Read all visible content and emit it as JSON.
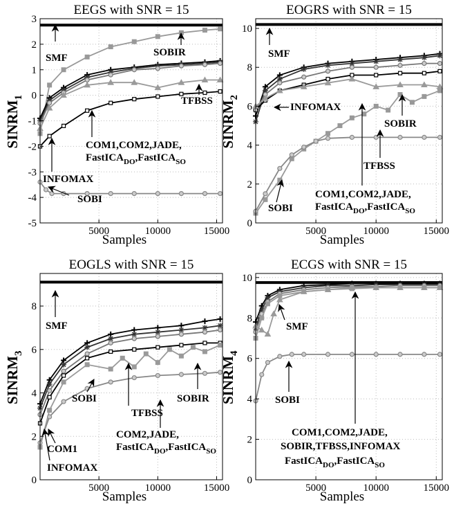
{
  "chart_data": [
    {
      "id": "eegs",
      "type": "line",
      "title": "EEGS  with SNR = 15",
      "ylabel": "SINRM",
      "ylabel_sub": "1",
      "xlabel": "Samples",
      "xlim": [
        0,
        15500
      ],
      "ylim": [
        -5,
        3
      ],
      "xticks": [
        5000,
        10000,
        15000
      ],
      "yticks": [
        -5,
        -4,
        -3,
        -2,
        -1,
        0,
        1,
        2,
        3
      ],
      "grid": true,
      "series": [
        {
          "name": "SMF",
          "color": "#000000",
          "marker": "hline",
          "x": [
            0,
            15500
          ],
          "y": [
            2.75,
            2.75
          ]
        },
        {
          "name": "SOBIR",
          "color": "#999999",
          "marker": "square",
          "x": [
            0,
            800,
            2000,
            4000,
            6000,
            8000,
            10000,
            12000,
            14000,
            15300
          ],
          "y": [
            -1.5,
            0.4,
            1.0,
            1.5,
            1.9,
            2.1,
            2.3,
            2.45,
            2.55,
            2.6
          ]
        },
        {
          "color": "#000000",
          "marker": "plus",
          "x": [
            0,
            800,
            2000,
            4000,
            6000,
            8000,
            10000,
            12000,
            14000,
            15300
          ],
          "y": [
            -0.9,
            -0.1,
            0.3,
            0.8,
            1.0,
            1.1,
            1.2,
            1.25,
            1.3,
            1.35
          ]
        },
        {
          "color": "#333333",
          "marker": "star",
          "x": [
            0,
            800,
            2000,
            4000,
            6000,
            8000,
            10000,
            12000,
            14000,
            15300
          ],
          "y": [
            -1.0,
            -0.2,
            0.2,
            0.7,
            0.9,
            1.05,
            1.15,
            1.2,
            1.25,
            1.3
          ]
        },
        {
          "color": "#777777",
          "marker": "circle",
          "x": [
            0,
            800,
            2000,
            4000,
            6000,
            8000,
            10000,
            12000,
            14000,
            15300
          ],
          "y": [
            -1.1,
            -0.3,
            0.1,
            0.6,
            0.8,
            1.0,
            1.05,
            1.15,
            1.2,
            1.25
          ]
        },
        {
          "name": "TFBSS",
          "color": "#9a9a9a",
          "marker": "triangle",
          "x": [
            0,
            800,
            2000,
            4000,
            6000,
            8000,
            10000,
            12000,
            14000,
            15300
          ],
          "y": [
            -1.3,
            -0.5,
            0.0,
            0.4,
            0.5,
            0.5,
            0.3,
            0.5,
            0.6,
            0.6
          ]
        },
        {
          "name": "INFOMAX",
          "color": "#000000",
          "marker": "opensquare",
          "x": [
            0,
            800,
            2000,
            4000,
            6000,
            8000,
            10000,
            12000,
            14000,
            15300
          ],
          "y": [
            -2.0,
            -1.6,
            -1.2,
            -0.6,
            -0.3,
            -0.15,
            -0.05,
            0.05,
            0.1,
            0.15
          ]
        },
        {
          "name": "SOBI",
          "color": "#888888",
          "marker": "circle",
          "x": [
            0,
            500,
            1000,
            2000,
            4000,
            6000,
            8000,
            10000,
            12000,
            14000,
            15300
          ],
          "y": [
            -3.4,
            -3.7,
            -3.85,
            -3.85,
            -3.85,
            -3.85,
            -3.85,
            -3.85,
            -3.85,
            -3.85,
            -3.85
          ]
        }
      ],
      "annotations": [
        {
          "text": "SMF"
        },
        {
          "text": "SOBIR"
        },
        {
          "text": "TFBSS"
        },
        {
          "text": "COM1,COM2,JADE,"
        },
        {
          "text": "FastICA",
          "sub": "DO",
          "after": ",FastICA",
          "sub2": "SO"
        },
        {
          "text": "INFOMAX"
        },
        {
          "text": "SOBI"
        }
      ]
    },
    {
      "id": "eogrs",
      "type": "line",
      "title": "EOGRS  with SNR = 15",
      "ylabel": "SINRM",
      "ylabel_sub": "2",
      "xlabel": "Samples",
      "xlim": [
        0,
        15500
      ],
      "ylim": [
        0,
        10.5
      ],
      "xticks": [
        5000,
        10000,
        15000
      ],
      "yticks": [
        0,
        2,
        4,
        6,
        8,
        10
      ],
      "grid": true,
      "series": [
        {
          "name": "SMF",
          "color": "#000000",
          "marker": "hline",
          "x": [
            0,
            15500
          ],
          "y": [
            10.2,
            10.2
          ]
        },
        {
          "color": "#000000",
          "marker": "plus",
          "x": [
            0,
            800,
            2000,
            4000,
            6000,
            8000,
            10000,
            12000,
            14000,
            15300
          ],
          "y": [
            5.5,
            7.0,
            7.6,
            8.0,
            8.2,
            8.3,
            8.4,
            8.5,
            8.6,
            8.7
          ]
        },
        {
          "color": "#333333",
          "marker": "star",
          "x": [
            0,
            800,
            2000,
            4000,
            6000,
            8000,
            10000,
            12000,
            14000,
            15300
          ],
          "y": [
            5.2,
            6.8,
            7.4,
            7.9,
            8.1,
            8.2,
            8.3,
            8.4,
            8.5,
            8.6
          ]
        },
        {
          "color": "#777777",
          "marker": "circle",
          "x": [
            0,
            800,
            2000,
            4000,
            6000,
            8000,
            10000,
            12000,
            14000,
            15300
          ],
          "y": [
            5.8,
            6.6,
            7.2,
            7.5,
            7.8,
            8.0,
            8.0,
            8.1,
            8.2,
            8.2
          ]
        },
        {
          "name": "INFOMAX",
          "color": "#000000",
          "marker": "opensquare",
          "x": [
            0,
            800,
            2000,
            4000,
            6000,
            8000,
            10000,
            12000,
            14000,
            15300
          ],
          "y": [
            5.8,
            6.3,
            6.8,
            7.1,
            7.4,
            7.6,
            7.6,
            7.7,
            7.7,
            7.8
          ]
        },
        {
          "name": "TFBSS",
          "color": "#9a9a9a",
          "marker": "triangle",
          "x": [
            0,
            800,
            2000,
            4000,
            6000,
            8000,
            10000,
            12000,
            14000,
            15300
          ],
          "y": [
            6.0,
            6.4,
            6.8,
            7.0,
            7.2,
            7.4,
            7.0,
            7.1,
            7.1,
            7.0
          ]
        },
        {
          "name": "SOBIR",
          "color": "#999999",
          "marker": "square",
          "x": [
            0,
            800,
            2000,
            3000,
            4000,
            5000,
            6000,
            7000,
            8000,
            9000,
            10000,
            11000,
            12000,
            13000,
            14000,
            15300
          ],
          "y": [
            0.5,
            1.2,
            2.2,
            3.3,
            3.8,
            4.2,
            4.6,
            5.0,
            5.4,
            5.6,
            6.0,
            5.8,
            6.6,
            6.2,
            6.5,
            6.8
          ]
        },
        {
          "name": "SOBI",
          "color": "#888888",
          "marker": "circle",
          "x": [
            0,
            800,
            2000,
            3000,
            4000,
            5000,
            6000,
            8000,
            10000,
            12000,
            14000,
            15300
          ],
          "y": [
            0.6,
            1.5,
            2.8,
            3.5,
            3.9,
            4.2,
            4.35,
            4.4,
            4.4,
            4.4,
            4.4,
            4.4
          ]
        }
      ],
      "annotations": [
        {
          "text": "SMF"
        },
        {
          "text": "INFOMAX"
        },
        {
          "text": "SOBIR"
        },
        {
          "text": "TFBSS"
        },
        {
          "text": "COM1,COM2,JADE,"
        },
        {
          "text": "FastICA",
          "sub": "DO",
          "after": ",FastICA",
          "sub2": "SO"
        },
        {
          "text": "SOBI"
        }
      ]
    },
    {
      "id": "eogls",
      "type": "line",
      "title": "EOGLS with SNR = 15",
      "ylabel": "SINRM",
      "ylabel_sub": "3",
      "xlabel": "Samples",
      "xlim": [
        0,
        15500
      ],
      "ylim": [
        0,
        9.5
      ],
      "xticks": [
        5000,
        10000,
        15000
      ],
      "yticks": [
        0,
        2,
        4,
        6,
        8
      ],
      "grid": true,
      "series": [
        {
          "name": "SMF",
          "color": "#000000",
          "marker": "hline",
          "x": [
            0,
            15500
          ],
          "y": [
            9.1,
            9.1
          ]
        },
        {
          "color": "#000000",
          "marker": "plus",
          "x": [
            0,
            800,
            2000,
            4000,
            6000,
            8000,
            10000,
            12000,
            14000,
            15300
          ],
          "y": [
            3.5,
            4.6,
            5.5,
            6.3,
            6.7,
            6.9,
            7.0,
            7.1,
            7.3,
            7.4
          ]
        },
        {
          "color": "#333333",
          "marker": "star",
          "x": [
            0,
            800,
            2000,
            4000,
            6000,
            8000,
            10000,
            12000,
            14000,
            15300
          ],
          "y": [
            3.3,
            4.4,
            5.3,
            6.1,
            6.5,
            6.7,
            6.8,
            6.9,
            7.0,
            7.1
          ]
        },
        {
          "name": "COM1",
          "color": "#777777",
          "marker": "circle",
          "x": [
            0,
            800,
            2000,
            4000,
            6000,
            8000,
            10000,
            12000,
            14000,
            15300
          ],
          "y": [
            3.0,
            4.1,
            5.0,
            5.8,
            6.3,
            6.5,
            6.6,
            6.7,
            6.8,
            6.9
          ]
        },
        {
          "name": "INFOMAX",
          "color": "#000000",
          "marker": "opensquare",
          "x": [
            0,
            800,
            2000,
            4000,
            6000,
            8000,
            10000,
            12000,
            14000,
            15300
          ],
          "y": [
            2.6,
            3.8,
            4.8,
            5.6,
            5.9,
            6.0,
            6.1,
            6.2,
            6.3,
            6.3
          ]
        },
        {
          "name": "TFBSS",
          "color": "#9a9a9a",
          "marker": "square",
          "x": [
            0,
            800,
            2000,
            4000,
            6000,
            7000,
            8000,
            9000,
            10000,
            11000,
            12000,
            13000,
            14000,
            15300
          ],
          "y": [
            1.5,
            3.2,
            4.5,
            5.3,
            5.1,
            5.6,
            5.2,
            5.8,
            5.4,
            6.0,
            5.7,
            6.1,
            5.9,
            6.2
          ]
        },
        {
          "name": "SOBIR",
          "color": "#888888",
          "marker": "circle",
          "x": [
            0,
            800,
            2000,
            4000,
            6000,
            8000,
            10000,
            12000,
            14000,
            15300
          ],
          "y": [
            1.7,
            2.9,
            3.6,
            4.2,
            4.5,
            4.7,
            4.8,
            4.85,
            4.9,
            4.95
          ]
        }
      ],
      "annotations": [
        {
          "text": "SMF"
        },
        {
          "text": "SOBIR"
        },
        {
          "text": "TFBSS"
        },
        {
          "text": "COM2,JADE,"
        },
        {
          "text": "FastICA",
          "sub": "DO",
          "after": ",FastICA",
          "sub2": "SO"
        },
        {
          "text": "SOBI"
        },
        {
          "text": "COM1"
        },
        {
          "text": "INFOMAX"
        }
      ]
    },
    {
      "id": "ecgs",
      "type": "line",
      "title": "ECGS  with SNR = 15",
      "ylabel": "SINRM",
      "ylabel_sub": "4",
      "xlabel": "Samples",
      "xlim": [
        0,
        15500
      ],
      "ylim": [
        0,
        10.2
      ],
      "xticks": [
        5000,
        10000,
        15000
      ],
      "yticks": [
        0,
        2,
        4,
        6,
        8,
        10
      ],
      "grid": true,
      "series": [
        {
          "name": "SMF",
          "color": "#000000",
          "marker": "hline",
          "x": [
            0,
            15500
          ],
          "y": [
            9.75,
            9.75
          ]
        },
        {
          "color": "#000000",
          "marker": "plus",
          "x": [
            0,
            500,
            1000,
            2000,
            4000,
            6000,
            8000,
            10000,
            12000,
            14000,
            15300
          ],
          "y": [
            7.8,
            8.6,
            9.1,
            9.4,
            9.6,
            9.65,
            9.7,
            9.7,
            9.7,
            9.7,
            9.7
          ]
        },
        {
          "color": "#333333",
          "marker": "star",
          "x": [
            0,
            500,
            1000,
            2000,
            4000,
            6000,
            8000,
            10000,
            12000,
            14000,
            15300
          ],
          "y": [
            7.5,
            8.4,
            9.0,
            9.3,
            9.5,
            9.6,
            9.6,
            9.65,
            9.65,
            9.65,
            9.65
          ]
        },
        {
          "color": "#777777",
          "marker": "circle",
          "x": [
            0,
            500,
            1000,
            2000,
            4000,
            6000,
            8000,
            10000,
            12000,
            14000,
            15300
          ],
          "y": [
            7.3,
            8.2,
            8.8,
            9.2,
            9.4,
            9.5,
            9.55,
            9.55,
            9.6,
            9.6,
            9.6
          ]
        },
        {
          "color": "#9a9a9a",
          "marker": "triangle",
          "x": [
            0,
            500,
            1000,
            1500,
            2000,
            4000,
            6000,
            8000,
            10000,
            12000,
            14000,
            15300
          ],
          "y": [
            7.6,
            7.4,
            7.2,
            8.2,
            8.9,
            9.3,
            9.4,
            9.5,
            9.5,
            9.5,
            9.5,
            9.5
          ]
        },
        {
          "color": "#999999",
          "marker": "square",
          "x": [
            0,
            500,
            1000,
            2000,
            4000,
            6000,
            8000,
            10000,
            12000,
            14000,
            15300
          ],
          "y": [
            7.0,
            8.0,
            8.7,
            9.1,
            9.3,
            9.4,
            9.45,
            9.5,
            9.5,
            9.5,
            9.5
          ]
        },
        {
          "name": "SOBI",
          "color": "#888888",
          "marker": "circle",
          "x": [
            0,
            500,
            1000,
            2000,
            3000,
            4000,
            6000,
            8000,
            10000,
            12000,
            14000,
            15300
          ],
          "y": [
            3.9,
            5.2,
            5.8,
            6.1,
            6.2,
            6.2,
            6.2,
            6.2,
            6.2,
            6.2,
            6.2,
            6.2
          ]
        }
      ],
      "annotations": [
        {
          "text": "SMF"
        },
        {
          "text": "SOBI"
        },
        {
          "text": "COM1,COM2,JADE,"
        },
        {
          "text": "SOBIR,TFBSS,INFOMAX"
        },
        {
          "text": "FastICA",
          "sub": "DO",
          "after": ",FastICA",
          "sub2": "SO"
        }
      ]
    }
  ]
}
